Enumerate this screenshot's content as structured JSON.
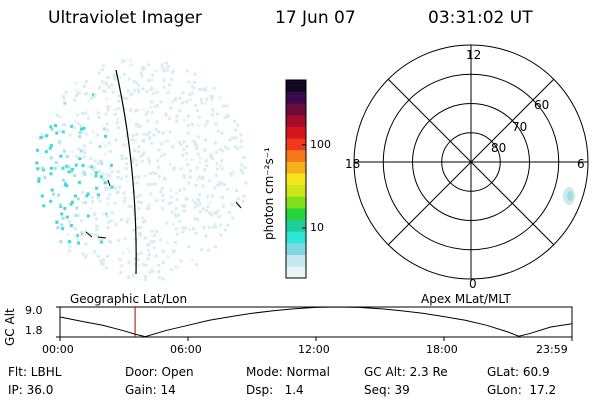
{
  "header": {
    "instrument": "Ultraviolet Imager",
    "date": "17 Jun 07",
    "time": "03:31:02 UT"
  },
  "colorbar": {
    "label": "photon cm⁻²s⁻¹",
    "ticks": [
      "100",
      "10"
    ],
    "tick_values": [
      100,
      10
    ],
    "range": [
      2.5,
      600
    ],
    "scale": "log",
    "colors": [
      "#e8f4f6",
      "#c4e8ee",
      "#7fd8e4",
      "#2ee6d8",
      "#1fcf9a",
      "#27d43a",
      "#7fe01c",
      "#cce61a",
      "#f4e61a",
      "#f6b01a",
      "#f4781a",
      "#ee3a1a",
      "#d4141e",
      "#a80c2a",
      "#6e0a3a",
      "#3a0a4c",
      "#120822"
    ]
  },
  "polar": {
    "mlt_labels": {
      "top": "12",
      "left": "18",
      "right": "6",
      "bottom": "0"
    },
    "lat_labels": [
      "60",
      "70",
      "80"
    ],
    "lat_circles": [
      50,
      60,
      70,
      80
    ]
  },
  "track": {
    "left_title": "Geographic Lat/Lon",
    "right_title": "Apex MLat/MLT",
    "ylabel": "GC Alt",
    "yticks": [
      "9.0",
      "1.8"
    ],
    "ylim": [
      1.8,
      9.0
    ],
    "xticks": [
      "00:00",
      "06:00",
      "12:00",
      "18:00",
      "23:59"
    ],
    "xlim_hours": [
      0,
      24
    ],
    "current_time_hours": 3.52
  },
  "chart_data": {
    "type": "line",
    "title": "",
    "xlabel": "",
    "ylabel": "GC Alt",
    "xlim": [
      0,
      24
    ],
    "ylim": [
      1.8,
      9.0
    ],
    "series": [
      {
        "x": [
          0,
          1,
          2,
          3,
          3.5,
          4,
          5,
          6,
          7,
          8,
          9,
          10,
          11,
          12,
          13,
          14,
          15,
          16,
          17,
          18,
          19,
          20,
          21,
          21.5,
          22,
          23,
          24
        ],
        "values": [
          6.6,
          5.6,
          4.6,
          3.3,
          2.5,
          1.9,
          3.4,
          4.6,
          5.8,
          6.7,
          7.5,
          8.1,
          8.6,
          8.9,
          9.0,
          8.9,
          8.6,
          8.1,
          7.5,
          6.7,
          5.8,
          4.6,
          3.0,
          2.0,
          2.6,
          4.2,
          5.0
        ]
      }
    ]
  },
  "footer": {
    "filter": "Flt: LBHL",
    "door": "Door: Open",
    "mode": "Mode: Normal",
    "gc_alt": "GC Alt: 2.3 Re",
    "glat": "GLat: 60.9",
    "ip": "IP: 36.0",
    "gain": "Gain: 14",
    "dsp": "Dsp:   1.4",
    "seq": "Seq: 39",
    "glon": "GLon:  17.2"
  }
}
